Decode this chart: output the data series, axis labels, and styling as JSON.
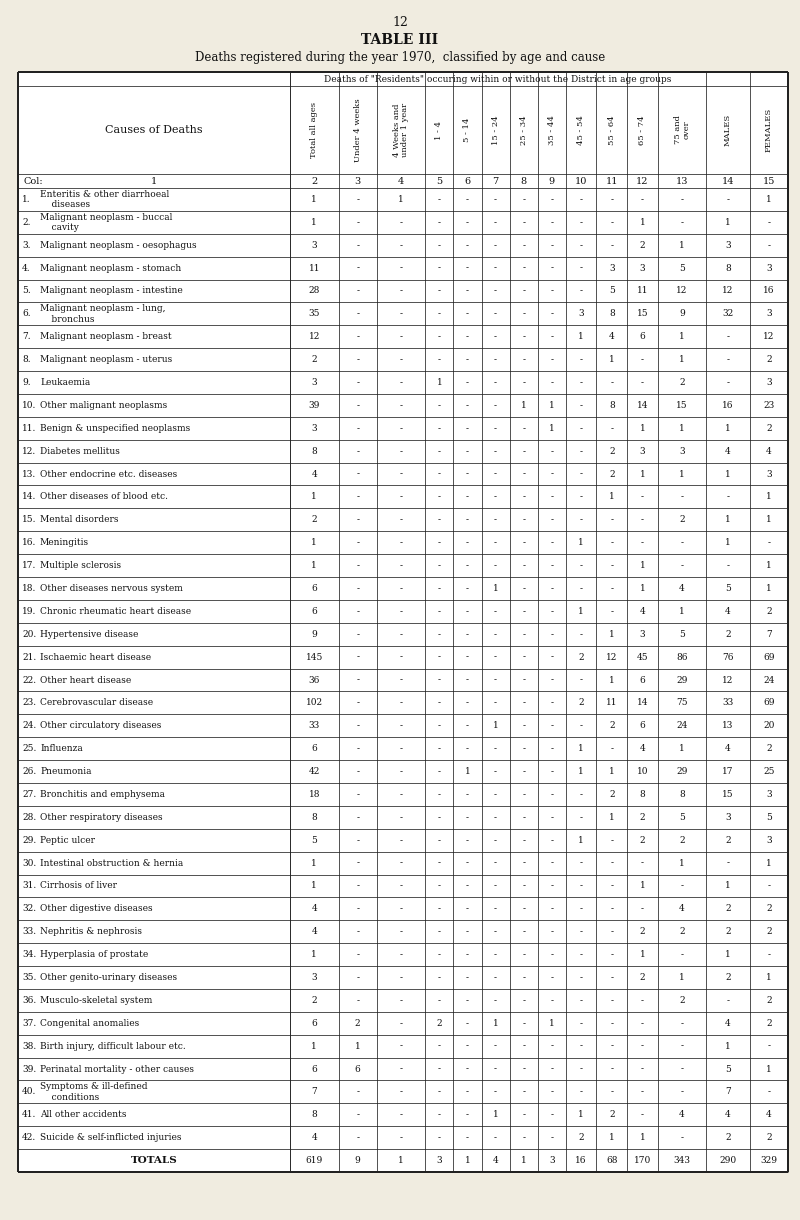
{
  "page_number": "12",
  "title": "TABLE III",
  "subtitle": "Deaths registered during the year 1970,  classified by age and cause",
  "col_header_span": "Deaths of \"Residents\" occuring within or without the District in age groups",
  "col_labels": [
    "Total all ages",
    "Under 4 weeks",
    "4 Weeks and\nunder 1 year",
    "1 - 4",
    "5 - 14",
    "15 - 24",
    "25 - 34",
    "35 - 44",
    "45 - 54",
    "55 - 64",
    "65 - 74",
    "75 and\nover",
    "MALES",
    "FEMALES"
  ],
  "col_numbers": [
    "2",
    "3",
    "4",
    "5",
    "6",
    "7",
    "8",
    "9",
    "10",
    "11",
    "12",
    "13",
    "14",
    "15"
  ],
  "rows": [
    {
      "num": "1.",
      "cause": "Enteritis & other diarrhoeal\n    diseases",
      "data": [
        "1",
        "-",
        "1",
        "-",
        "-",
        "-",
        "-",
        "-",
        "-",
        "-",
        "-",
        "-",
        "-",
        "1"
      ]
    },
    {
      "num": "2.",
      "cause": "Malignant neoplasm - buccal\n    cavity",
      "data": [
        "1",
        "-",
        "-",
        "-",
        "-",
        "-",
        "-",
        "-",
        "-",
        "-",
        "1",
        "-",
        "1",
        "-"
      ]
    },
    {
      "num": "3.",
      "cause": "Malignant neoplasm - oesophagus",
      "data": [
        "3",
        "-",
        "-",
        "-",
        "-",
        "-",
        "-",
        "-",
        "-",
        "-",
        "2",
        "1",
        "3",
        "-"
      ]
    },
    {
      "num": "4.",
      "cause": "Malignant neoplasm - stomach",
      "data": [
        "11",
        "-",
        "-",
        "-",
        "-",
        "-",
        "-",
        "-",
        "-",
        "3",
        "3",
        "5",
        "8",
        "3"
      ]
    },
    {
      "num": "5.",
      "cause": "Malignant neoplasm - intestine",
      "data": [
        "28",
        "-",
        "-",
        "-",
        "-",
        "-",
        "-",
        "-",
        "-",
        "5",
        "11",
        "12",
        "12",
        "16"
      ]
    },
    {
      "num": "6.",
      "cause": "Malignant neoplasm - lung,\n    bronchus",
      "data": [
        "35",
        "-",
        "-",
        "-",
        "-",
        "-",
        "-",
        "-",
        "3",
        "8",
        "15",
        "9",
        "32",
        "3"
      ]
    },
    {
      "num": "7.",
      "cause": "Malignant neoplasm - breast",
      "data": [
        "12",
        "-",
        "-",
        "-",
        "-",
        "-",
        "-",
        "-",
        "1",
        "4",
        "6",
        "1",
        "-",
        "12"
      ]
    },
    {
      "num": "8.",
      "cause": "Malignant neoplasm - uterus",
      "data": [
        "2",
        "-",
        "-",
        "-",
        "-",
        "-",
        "-",
        "-",
        "-",
        "1",
        "-",
        "1",
        "-",
        "2"
      ]
    },
    {
      "num": "9.",
      "cause": "Leukaemia",
      "data": [
        "3",
        "-",
        "-",
        "1",
        "-",
        "-",
        "-",
        "-",
        "-",
        "-",
        "-",
        "2",
        "-",
        "3"
      ]
    },
    {
      "num": "10.",
      "cause": "Other malignant neoplasms",
      "data": [
        "39",
        "-",
        "-",
        "-",
        "-",
        "-",
        "1",
        "1",
        "-",
        "8",
        "14",
        "15",
        "16",
        "23"
      ]
    },
    {
      "num": "11.",
      "cause": "Benign & unspecified neoplasms",
      "data": [
        "3",
        "-",
        "-",
        "-",
        "-",
        "-",
        "-",
        "1",
        "-",
        "-",
        "1",
        "1",
        "1",
        "2"
      ]
    },
    {
      "num": "12.",
      "cause": "Diabetes mellitus",
      "data": [
        "8",
        "-",
        "-",
        "-",
        "-",
        "-",
        "-",
        "-",
        "-",
        "2",
        "3",
        "3",
        "4",
        "4"
      ]
    },
    {
      "num": "13.",
      "cause": "Other endocrine etc. diseases",
      "data": [
        "4",
        "-",
        "-",
        "-",
        "-",
        "-",
        "-",
        "-",
        "-",
        "2",
        "1",
        "1",
        "1",
        "3"
      ]
    },
    {
      "num": "14.",
      "cause": "Other diseases of blood etc.",
      "data": [
        "1",
        "-",
        "-",
        "-",
        "-",
        "-",
        "-",
        "-",
        "-",
        "1",
        "-",
        "-",
        "-",
        "1"
      ]
    },
    {
      "num": "15.",
      "cause": "Mental disorders",
      "data": [
        "2",
        "-",
        "-",
        "-",
        "-",
        "-",
        "-",
        "-",
        "-",
        "-",
        "-",
        "2",
        "1",
        "1"
      ]
    },
    {
      "num": "16.",
      "cause": "Meningitis",
      "data": [
        "1",
        "-",
        "-",
        "-",
        "-",
        "-",
        "-",
        "-",
        "1",
        "-",
        "-",
        "-",
        "1",
        "-"
      ]
    },
    {
      "num": "17.",
      "cause": "Multiple sclerosis",
      "data": [
        "1",
        "-",
        "-",
        "-",
        "-",
        "-",
        "-",
        "-",
        "-",
        "-",
        "1",
        "-",
        "-",
        "1"
      ]
    },
    {
      "num": "18.",
      "cause": "Other diseases nervous system",
      "data": [
        "6",
        "-",
        "-",
        "-",
        "-",
        "1",
        "-",
        "-",
        "-",
        "-",
        "1",
        "4",
        "5",
        "1"
      ]
    },
    {
      "num": "19.",
      "cause": "Chronic rheumatic heart disease",
      "data": [
        "6",
        "-",
        "-",
        "-",
        "-",
        "-",
        "-",
        "-",
        "1",
        "-",
        "4",
        "1",
        "4",
        "2"
      ]
    },
    {
      "num": "20.",
      "cause": "Hypertensive disease",
      "data": [
        "9",
        "-",
        "-",
        "-",
        "-",
        "-",
        "-",
        "-",
        "-",
        "1",
        "3",
        "5",
        "2",
        "7"
      ]
    },
    {
      "num": "21.",
      "cause": "Ischaemic heart disease",
      "data": [
        "145",
        "-",
        "-",
        "-",
        "-",
        "-",
        "-",
        "-",
        "2",
        "12",
        "45",
        "86",
        "76",
        "69"
      ]
    },
    {
      "num": "22.",
      "cause": "Other heart disease",
      "data": [
        "36",
        "-",
        "-",
        "-",
        "-",
        "-",
        "-",
        "-",
        "-",
        "1",
        "6",
        "29",
        "12",
        "24"
      ]
    },
    {
      "num": "23.",
      "cause": "Cerebrovascular disease",
      "data": [
        "102",
        "-",
        "-",
        "-",
        "-",
        "-",
        "-",
        "-",
        "2",
        "11",
        "14",
        "75",
        "33",
        "69"
      ]
    },
    {
      "num": "24.",
      "cause": "Other circulatory diseases",
      "data": [
        "33",
        "-",
        "-",
        "-",
        "-",
        "1",
        "-",
        "-",
        "-",
        "2",
        "6",
        "24",
        "13",
        "20"
      ]
    },
    {
      "num": "25.",
      "cause": "Influenza",
      "data": [
        "6",
        "-",
        "-",
        "-",
        "-",
        "-",
        "-",
        "-",
        "1",
        "-",
        "4",
        "1",
        "4",
        "2"
      ]
    },
    {
      "num": "26.",
      "cause": "Pneumonia",
      "data": [
        "42",
        "-",
        "-",
        "-",
        "1",
        "-",
        "-",
        "-",
        "1",
        "1",
        "10",
        "29",
        "17",
        "25"
      ]
    },
    {
      "num": "27.",
      "cause": "Bronchitis and emphysema",
      "data": [
        "18",
        "-",
        "-",
        "-",
        "-",
        "-",
        "-",
        "-",
        "-",
        "2",
        "8",
        "8",
        "15",
        "3"
      ]
    },
    {
      "num": "28.",
      "cause": "Other respiratory diseases",
      "data": [
        "8",
        "-",
        "-",
        "-",
        "-",
        "-",
        "-",
        "-",
        "-",
        "1",
        "2",
        "5",
        "3",
        "5"
      ]
    },
    {
      "num": "29.",
      "cause": "Peptic ulcer",
      "data": [
        "5",
        "-",
        "-",
        "-",
        "-",
        "-",
        "-",
        "-",
        "1",
        "-",
        "2",
        "2",
        "2",
        "3"
      ]
    },
    {
      "num": "30.",
      "cause": "Intestinal obstruction & hernia",
      "data": [
        "1",
        "-",
        "-",
        "-",
        "-",
        "-",
        "-",
        "-",
        "-",
        "-",
        "-",
        "1",
        "-",
        "1"
      ]
    },
    {
      "num": "31.",
      "cause": "Cirrhosis of liver",
      "data": [
        "1",
        "-",
        "-",
        "-",
        "-",
        "-",
        "-",
        "-",
        "-",
        "-",
        "1",
        "-",
        "1",
        "-"
      ]
    },
    {
      "num": "32.",
      "cause": "Other digestive diseases",
      "data": [
        "4",
        "-",
        "-",
        "-",
        "-",
        "-",
        "-",
        "-",
        "-",
        "-",
        "-",
        "4",
        "2",
        "2"
      ]
    },
    {
      "num": "33.",
      "cause": "Nephritis & nephrosis",
      "data": [
        "4",
        "-",
        "-",
        "-",
        "-",
        "-",
        "-",
        "-",
        "-",
        "-",
        "2",
        "2",
        "2",
        "2"
      ]
    },
    {
      "num": "34.",
      "cause": "Hyperplasia of prostate",
      "data": [
        "1",
        "-",
        "-",
        "-",
        "-",
        "-",
        "-",
        "-",
        "-",
        "-",
        "1",
        "-",
        "1",
        "-"
      ]
    },
    {
      "num": "35.",
      "cause": "Other genito-urinary diseases",
      "data": [
        "3",
        "-",
        "-",
        "-",
        "-",
        "-",
        "-",
        "-",
        "-",
        "-",
        "2",
        "1",
        "2",
        "1"
      ]
    },
    {
      "num": "36.",
      "cause": "Musculo-skeletal system",
      "data": [
        "2",
        "-",
        "-",
        "-",
        "-",
        "-",
        "-",
        "-",
        "-",
        "-",
        "-",
        "2",
        "-",
        "2"
      ]
    },
    {
      "num": "37.",
      "cause": "Congenital anomalies",
      "data": [
        "6",
        "2",
        "-",
        "2",
        "-",
        "1",
        "-",
        "1",
        "-",
        "-",
        "-",
        "-",
        "4",
        "2"
      ]
    },
    {
      "num": "38.",
      "cause": "Birth injury, difficult labour etc.",
      "data": [
        "1",
        "1",
        "-",
        "-",
        "-",
        "-",
        "-",
        "-",
        "-",
        "-",
        "-",
        "-",
        "1",
        "-"
      ]
    },
    {
      "num": "39.",
      "cause": "Perinatal mortality - other causes",
      "data": [
        "6",
        "6",
        "-",
        "-",
        "-",
        "-",
        "-",
        "-",
        "-",
        "-",
        "-",
        "-",
        "5",
        "1"
      ]
    },
    {
      "num": "40.",
      "cause": "Symptoms & ill-defined\n    conditions",
      "data": [
        "7",
        "-",
        "-",
        "-",
        "-",
        "-",
        "-",
        "-",
        "-",
        "-",
        "-",
        "-",
        "7",
        "-"
      ]
    },
    {
      "num": "41.",
      "cause": "All other accidents",
      "data": [
        "8",
        "-",
        "-",
        "-",
        "-",
        "1",
        "-",
        "-",
        "1",
        "2",
        "-",
        "4",
        "4",
        "4"
      ]
    },
    {
      "num": "42.",
      "cause": "Suicide & self-inflicted injuries",
      "data": [
        "4",
        "-",
        "-",
        "-",
        "-",
        "-",
        "-",
        "-",
        "2",
        "1",
        "1",
        "-",
        "2",
        "2"
      ]
    },
    {
      "num": "",
      "cause": "TOTALS",
      "data": [
        "619",
        "9",
        "1",
        "3",
        "1",
        "4",
        "1",
        "3",
        "16",
        "68",
        "170",
        "343",
        "290",
        "329"
      ]
    }
  ],
  "bg_color": "#f0ece0",
  "text_color": "#111111",
  "line_color": "#222222"
}
